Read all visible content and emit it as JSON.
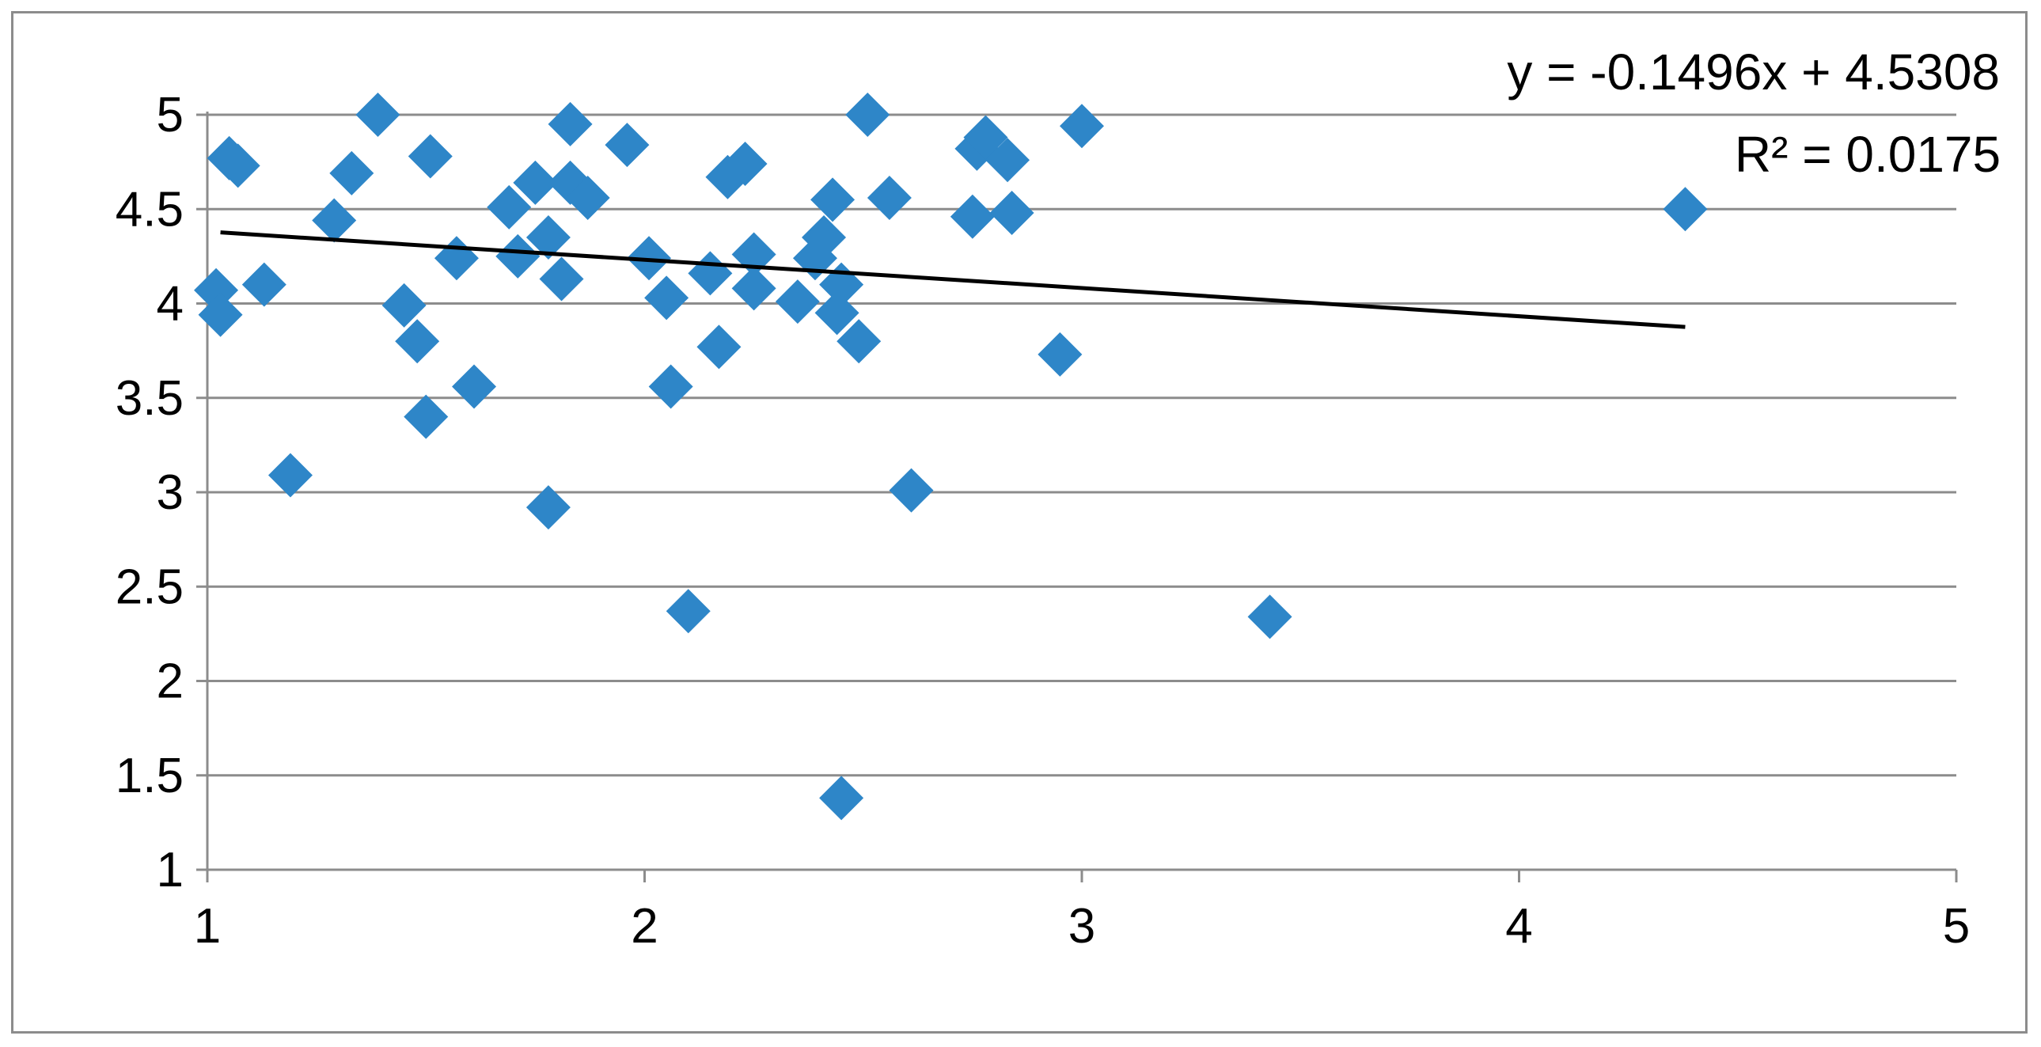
{
  "chart_data": {
    "type": "scatter",
    "title": "",
    "xlabel": "",
    "ylabel": "",
    "xlim": [
      1,
      5
    ],
    "ylim": [
      1,
      5
    ],
    "x_ticks": [
      "1",
      "2",
      "3",
      "4",
      "5"
    ],
    "y_ticks": [
      "1",
      "1.5",
      "2",
      "2.5",
      "3",
      "3.5",
      "4",
      "4.5",
      "5"
    ],
    "grid": "horizontal",
    "legend": "none",
    "marker": "diamond",
    "marker_color": "#2e86c8",
    "trendline": {
      "type": "linear",
      "slope": -0.1496,
      "intercept": 4.5308,
      "x_range": [
        1.03,
        4.38
      ],
      "color": "#000000",
      "equation_label": "y = -0.1496x + 4.5308",
      "r_squared_label": "R² = 0.0175"
    },
    "series": [
      {
        "points": [
          [
            1.02,
            4.07
          ],
          [
            1.03,
            3.94
          ],
          [
            1.05,
            4.77
          ],
          [
            1.07,
            4.73
          ],
          [
            1.13,
            4.1
          ],
          [
            1.19,
            3.09
          ],
          [
            1.29,
            4.44
          ],
          [
            1.33,
            4.69
          ],
          [
            1.39,
            5.0
          ],
          [
            1.45,
            3.99
          ],
          [
            1.48,
            3.8
          ],
          [
            1.5,
            3.4
          ],
          [
            1.51,
            4.78
          ],
          [
            1.57,
            4.24
          ],
          [
            1.61,
            3.56
          ],
          [
            1.69,
            4.51
          ],
          [
            1.71,
            4.25
          ],
          [
            1.75,
            4.64
          ],
          [
            1.78,
            4.35
          ],
          [
            1.78,
            2.92
          ],
          [
            1.81,
            4.13
          ],
          [
            1.83,
            4.95
          ],
          [
            1.83,
            4.64
          ],
          [
            1.87,
            4.56
          ],
          [
            1.96,
            4.84
          ],
          [
            2.01,
            4.24
          ],
          [
            2.05,
            4.03
          ],
          [
            2.06,
            3.56
          ],
          [
            2.1,
            2.37
          ],
          [
            2.15,
            4.16
          ],
          [
            2.17,
            3.77
          ],
          [
            2.19,
            4.67
          ],
          [
            2.23,
            4.74
          ],
          [
            2.25,
            4.26
          ],
          [
            2.25,
            4.08
          ],
          [
            2.35,
            4.01
          ],
          [
            2.39,
            4.24
          ],
          [
            2.41,
            4.35
          ],
          [
            2.43,
            4.55
          ],
          [
            2.44,
            3.95
          ],
          [
            2.45,
            4.1
          ],
          [
            2.45,
            1.38
          ],
          [
            2.49,
            3.8
          ],
          [
            2.51,
            5.0
          ],
          [
            2.56,
            4.56
          ],
          [
            2.61,
            3.01
          ],
          [
            2.75,
            4.46
          ],
          [
            2.76,
            4.82
          ],
          [
            2.78,
            4.88
          ],
          [
            2.83,
            4.76
          ],
          [
            2.84,
            4.48
          ],
          [
            2.95,
            3.73
          ],
          [
            3.0,
            4.94
          ],
          [
            3.43,
            2.34
          ],
          [
            4.38,
            4.5
          ]
        ]
      }
    ]
  }
}
